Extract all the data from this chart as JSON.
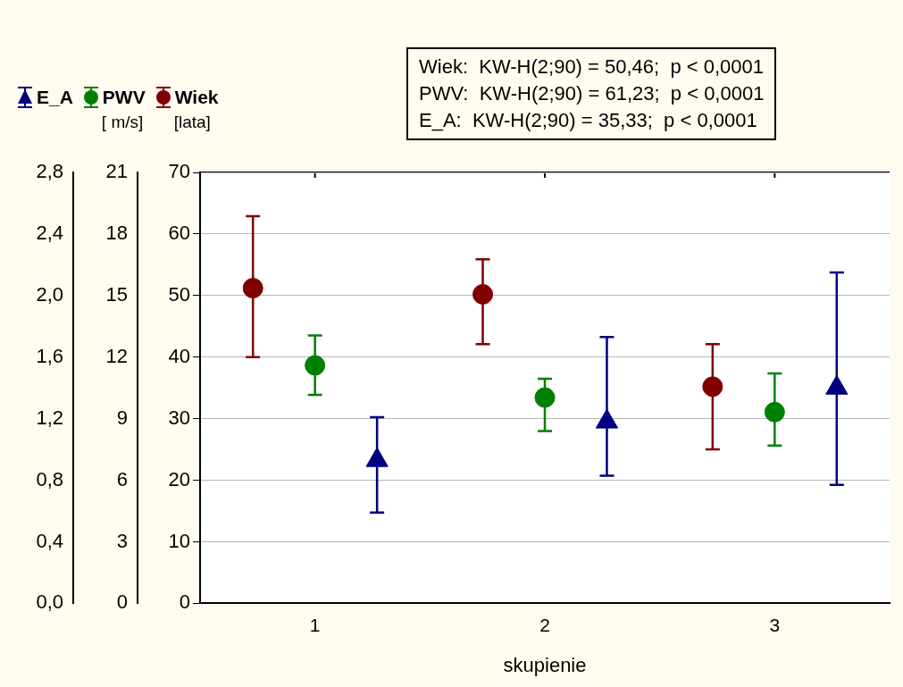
{
  "chart_data": {
    "type": "scatter",
    "xlabel": "skupienie",
    "categories": [
      "1",
      "2",
      "3"
    ],
    "series": [
      {
        "name": "E_A",
        "color": "#000080",
        "marker": "triangle",
        "axis": "y3",
        "values": [
          0.93,
          1.18,
          1.4
        ],
        "errors": [
          [
            0.59,
            1.21
          ],
          [
            0.83,
            1.73
          ],
          [
            0.77,
            2.15
          ]
        ]
      },
      {
        "name": "PWV",
        "color": "#008000",
        "marker": "circle",
        "axis": "y2",
        "values": [
          11.6,
          10.03,
          9.32
        ],
        "errors": [
          [
            10.16,
            13.06
          ],
          [
            8.4,
            10.94
          ],
          [
            7.69,
            11.2
          ]
        ]
      },
      {
        "name": "Wiek",
        "color": "#800000",
        "marker": "circle",
        "values": [
          51.2,
          50.2,
          35.2
        ],
        "errors": [
          [
            40.0,
            62.9
          ],
          [
            42.1,
            55.9
          ],
          [
            25.0,
            42.1
          ]
        ]
      }
    ],
    "ylabel": "[lata]",
    "y2label": "[ m/s]",
    "ylim": [
      0,
      70
    ],
    "yticks": [
      0,
      10,
      20,
      30,
      40,
      50,
      60,
      70
    ],
    "y2lim": [
      0,
      21
    ],
    "y2ticks": [
      0,
      3,
      6,
      9,
      12,
      15,
      18,
      21
    ],
    "y3lim": [
      0,
      2.8
    ],
    "y3ticks": [
      {
        "value": 0,
        "label": "0,0"
      },
      {
        "value": 0.4,
        "label": "0,4"
      },
      {
        "value": 0.8,
        "label": "0,8"
      },
      {
        "value": 1.2,
        "label": "1,2"
      },
      {
        "value": 1.6,
        "label": "1,6"
      },
      {
        "value": 2.0,
        "label": "2,0"
      },
      {
        "value": 2.4,
        "label": "2,4"
      },
      {
        "value": 2.8,
        "label": "2,8"
      }
    ],
    "grid": "y",
    "legend": "top left",
    "annotations": [
      "Wiek:  KW-H(2;90) = 50,46;  p < 0,0001",
      "PWV:  KW-H(2;90) = 61,23;  p < 0,0001",
      "E_A:  KW-H(2;90) = 35,33;  p < 0,0001"
    ]
  }
}
